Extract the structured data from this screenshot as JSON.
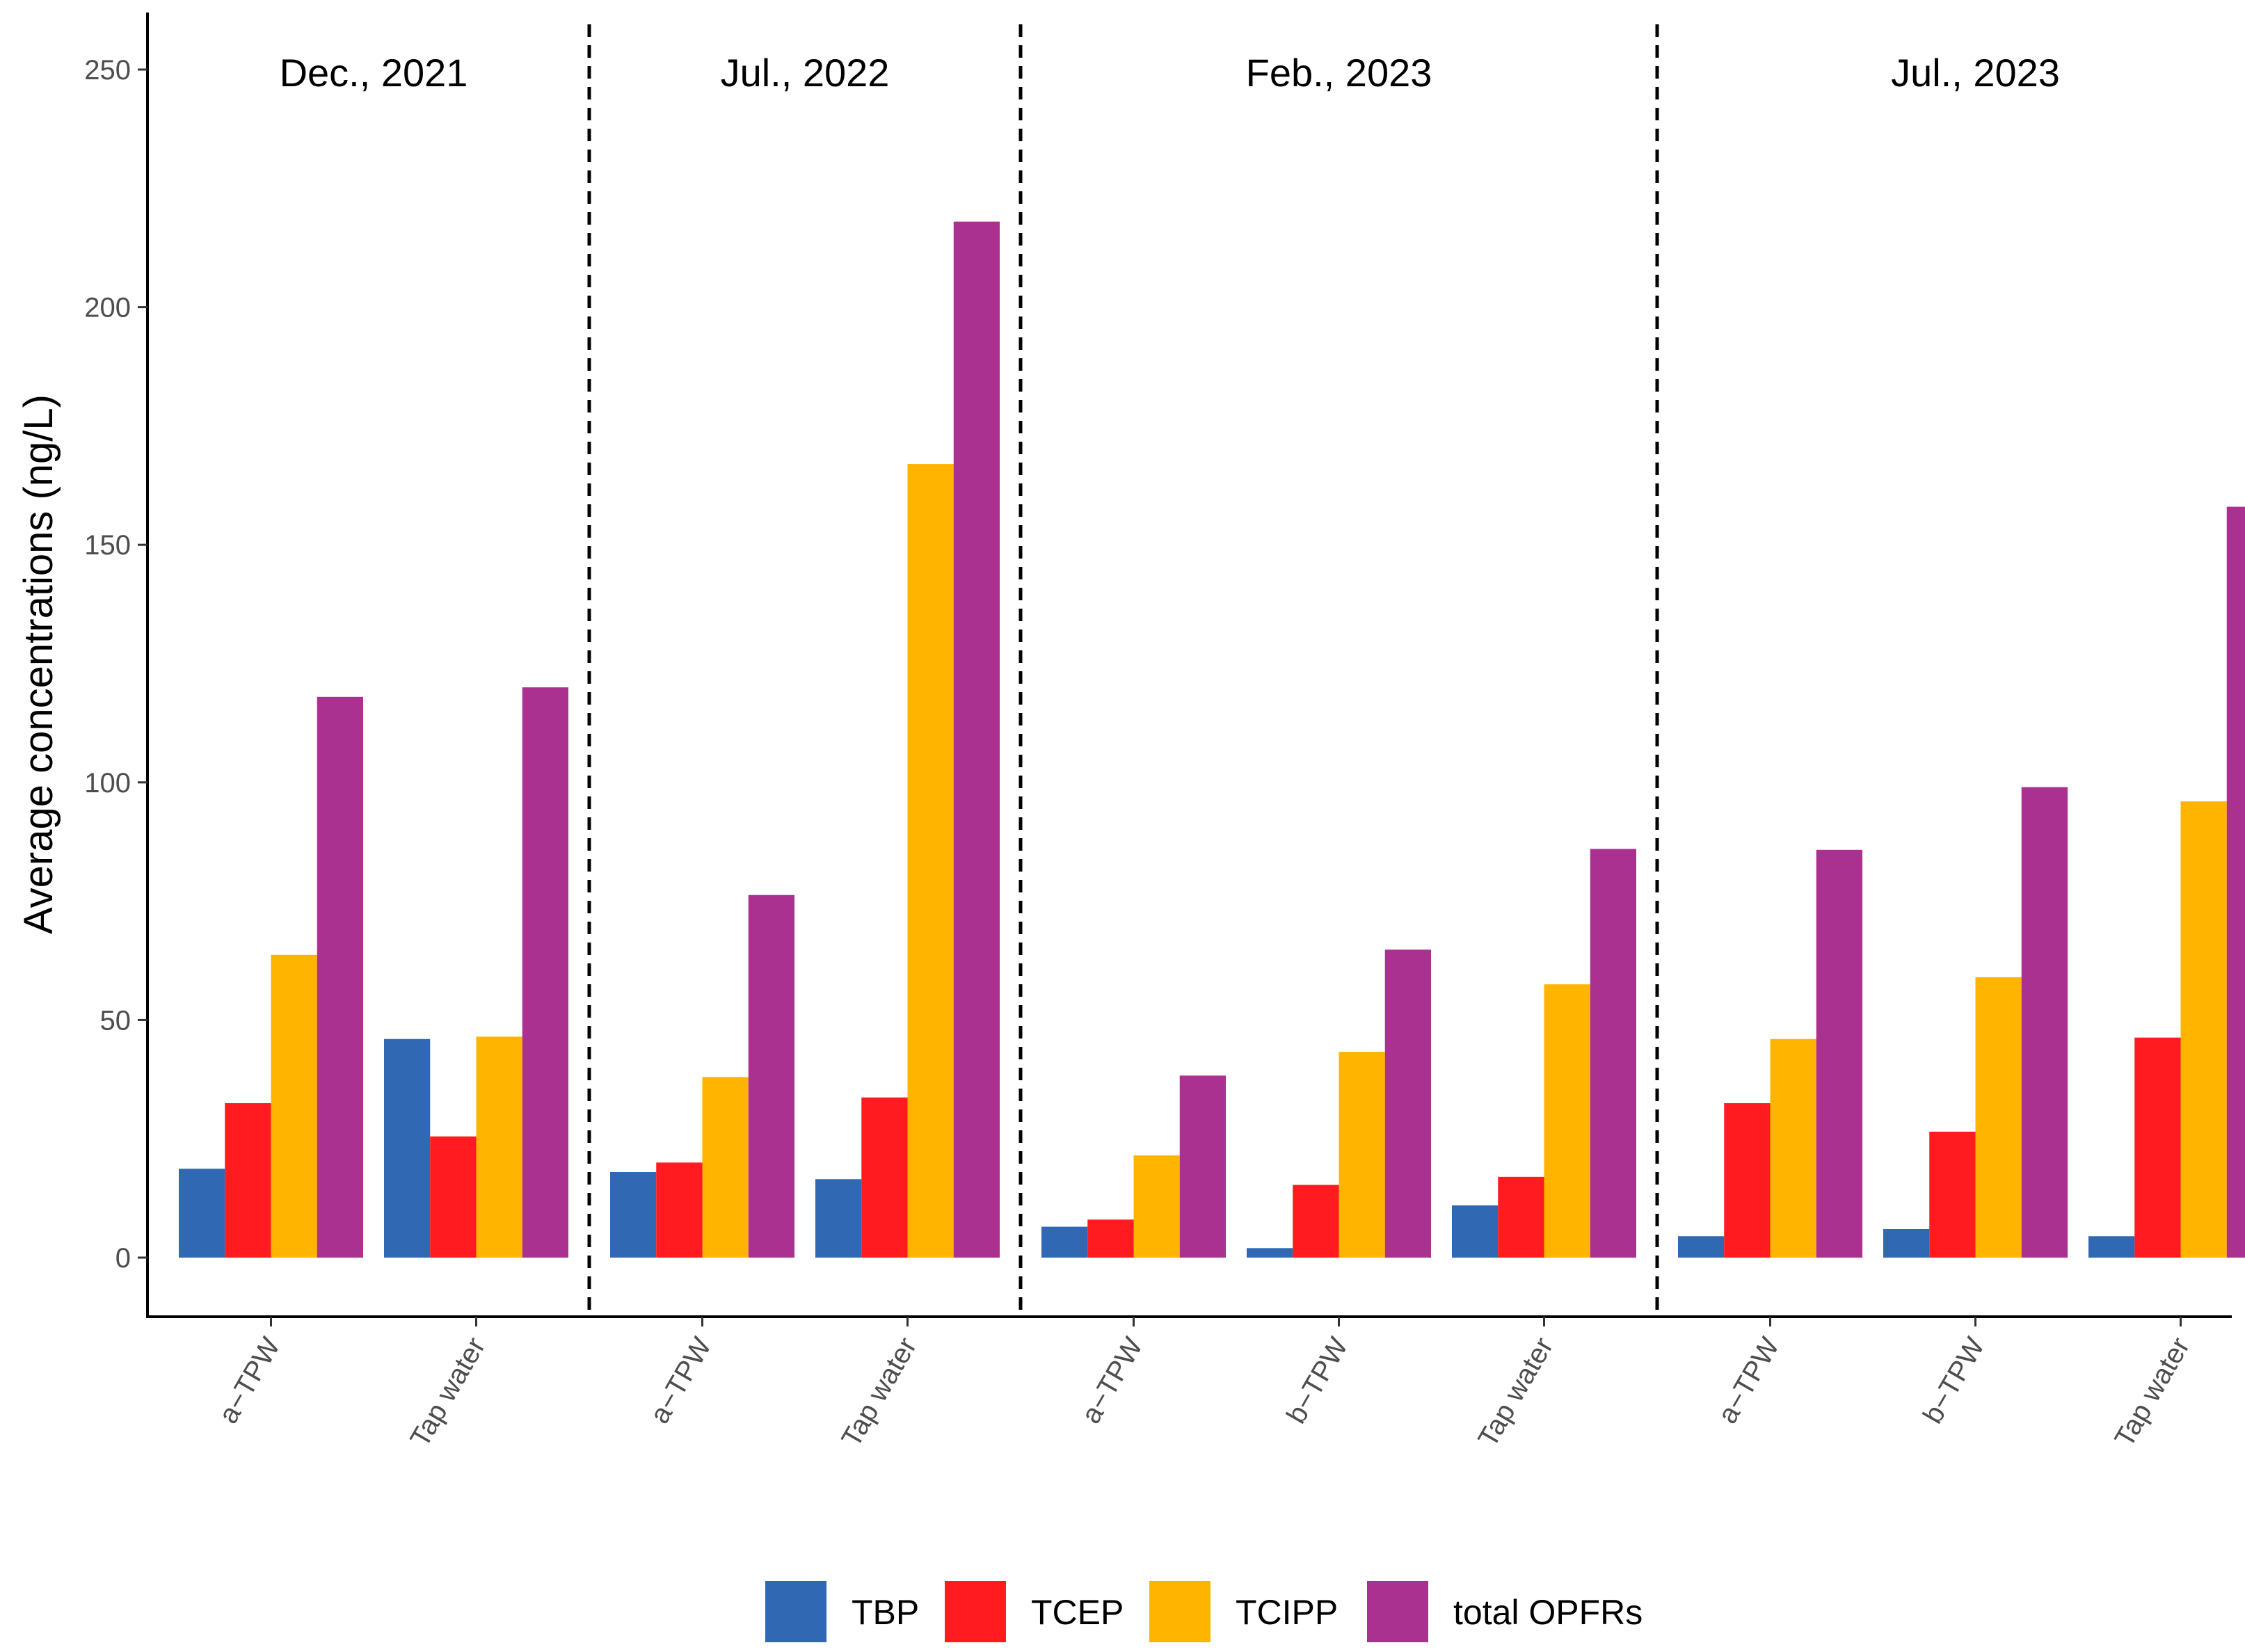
{
  "chart_data": {
    "type": "bar",
    "ylabel": "Average concentrations (ng/L)",
    "ylim": [
      -12,
      262
    ],
    "yticks": [
      0,
      50,
      100,
      150,
      200,
      250
    ],
    "grid": false,
    "legend_position": "bottom",
    "periods": [
      {
        "label": "Dec., 2021",
        "categories": [
          "a−TPW",
          "Tap water"
        ]
      },
      {
        "label": "Jul., 2022",
        "categories": [
          "a−TPW",
          "Tap water"
        ]
      },
      {
        "label": "Feb., 2023",
        "categories": [
          "a−TPW",
          "b−TPW",
          "Tap water"
        ]
      },
      {
        "label": "Jul., 2023",
        "categories": [
          "a−TPW",
          "b−TPW",
          "Tap water"
        ]
      }
    ],
    "categories": [
      "a−TPW",
      "Tap water",
      "a−TPW",
      "Tap water",
      "a−TPW",
      "b−TPW",
      "Tap water",
      "a−TPW",
      "b−TPW",
      "Tap water"
    ],
    "series": [
      {
        "name": "TBP",
        "color": "#3068B3",
        "values": [
          18.7,
          46,
          18,
          16.5,
          6.5,
          2,
          11,
          4.5,
          6,
          4.5
        ]
      },
      {
        "name": "TCEP",
        "color": "#FF1B1F",
        "values": [
          32.5,
          25.5,
          20,
          33.7,
          8,
          15.3,
          17,
          32.5,
          26.5,
          46.3
        ]
      },
      {
        "name": "TCIPP",
        "color": "#FFB500",
        "values": [
          63.7,
          46.5,
          38,
          167,
          21.5,
          43.3,
          57.5,
          46,
          59,
          96
        ]
      },
      {
        "name": "total OPFRs",
        "color": "#AA3190",
        "values": [
          118,
          120,
          76.3,
          218,
          38.3,
          64.8,
          86,
          85.8,
          99,
          158
        ]
      }
    ]
  }
}
